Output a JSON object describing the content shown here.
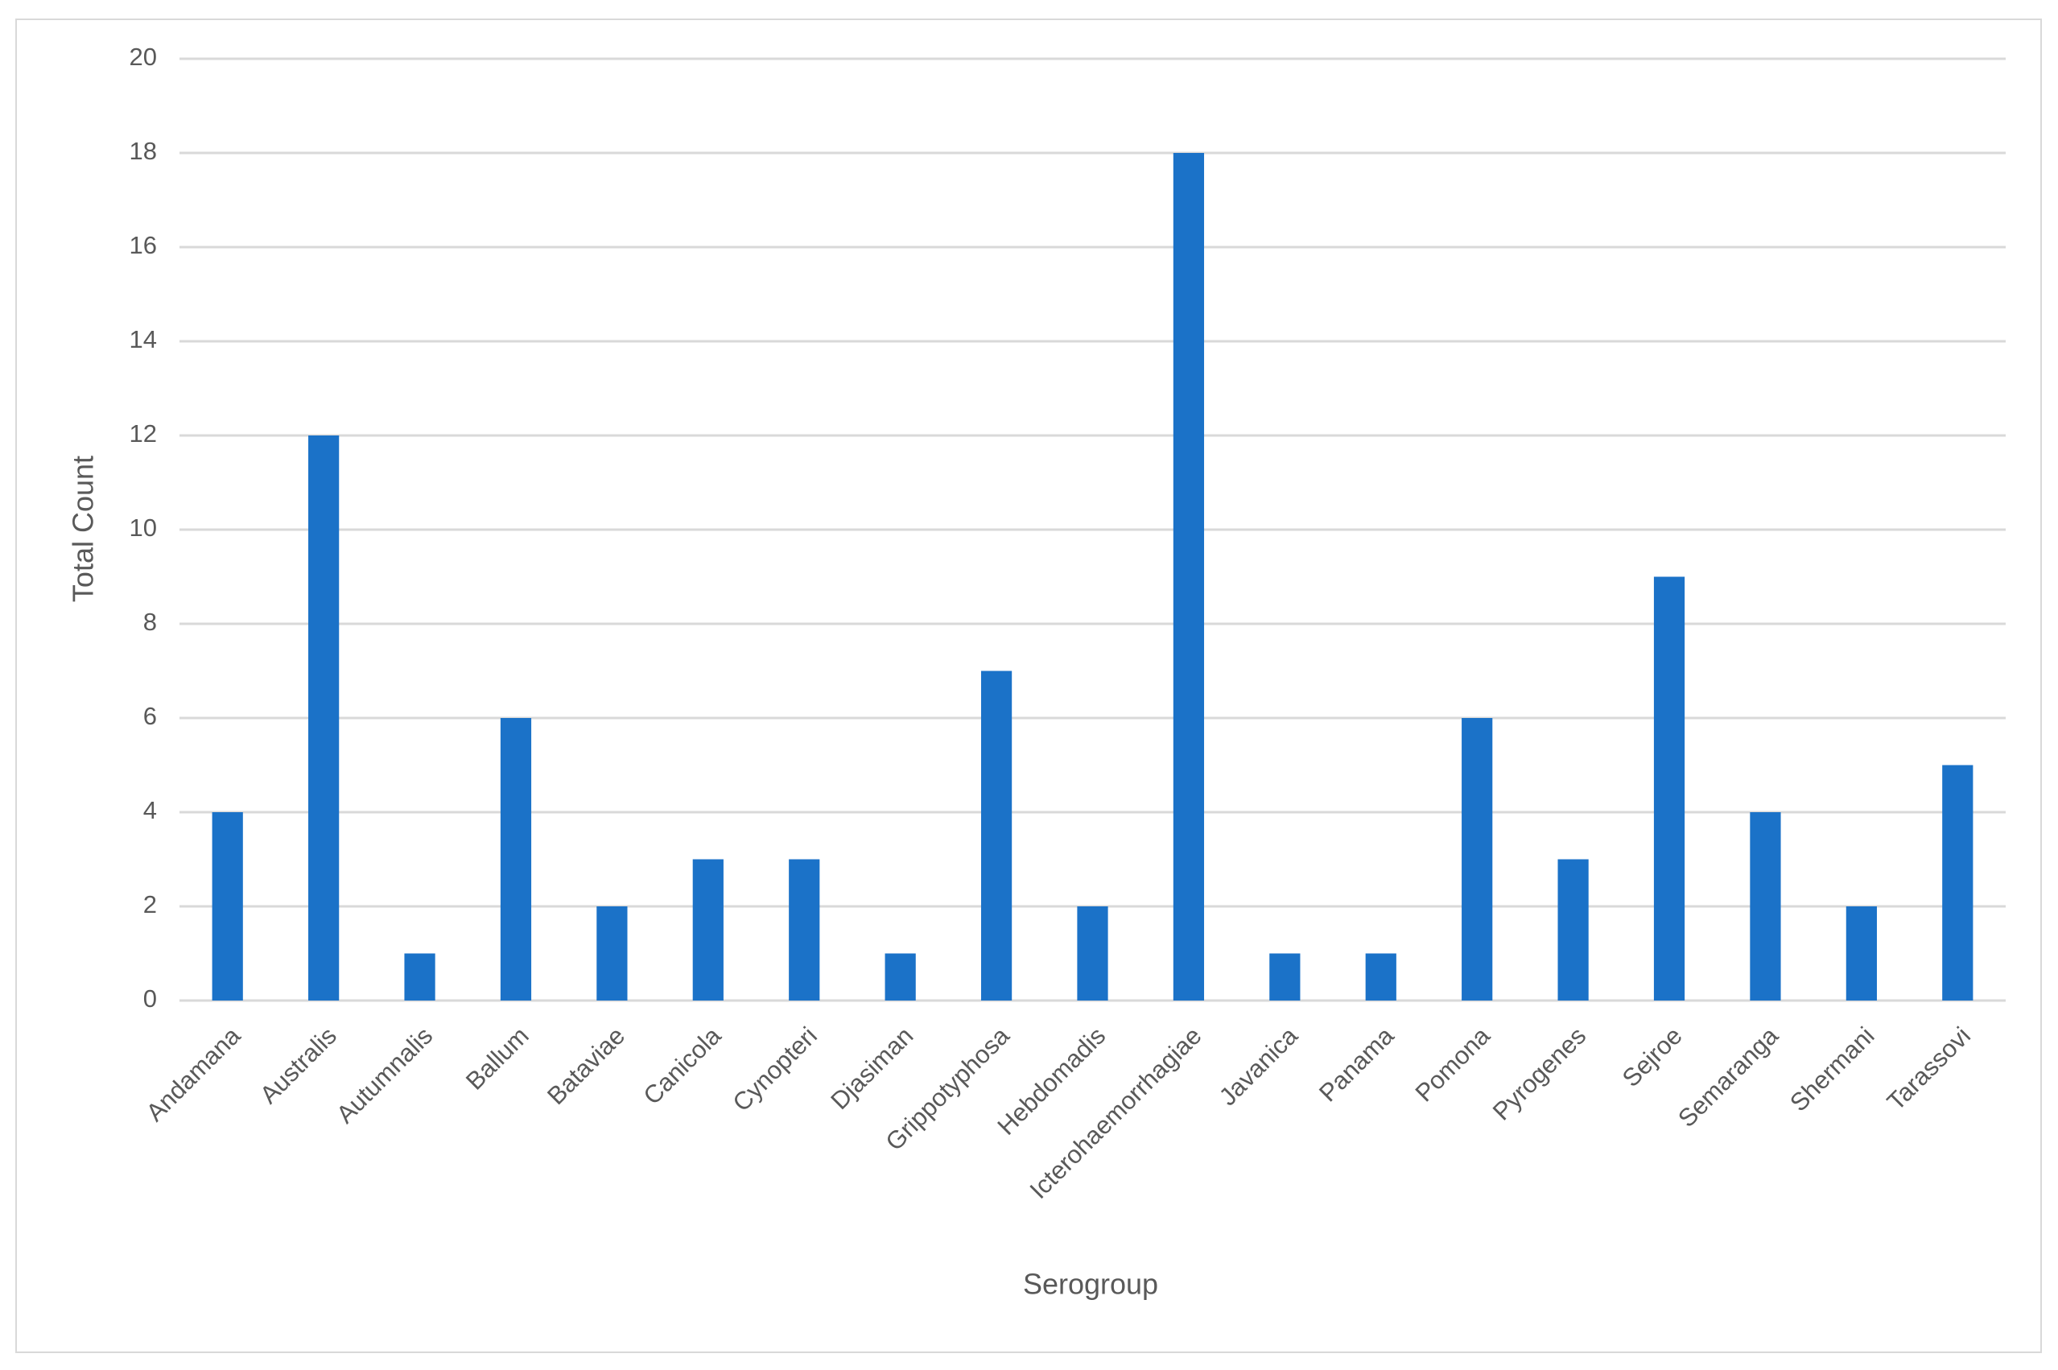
{
  "chart_data": {
    "type": "bar",
    "x_label": "Serogroup",
    "y_label": "Total Count",
    "categories": [
      "Andamana",
      "Australis",
      "Autumnalis",
      "Ballum",
      "Bataviae",
      "Canicola",
      "Cynopteri",
      "Djasiman",
      "Grippotyphosa",
      "Hebdomadis",
      "Icterohaemorrhagiae",
      "Javanica",
      "Panama",
      "Pomona",
      "Pyrogenes",
      "Sejroe",
      "Semaranga",
      "Shermani",
      "Tarassovi"
    ],
    "values": [
      4,
      12,
      1,
      6,
      2,
      3,
      3,
      1,
      7,
      2,
      18,
      1,
      1,
      6,
      3,
      9,
      4,
      2,
      5
    ],
    "color": "#1b72c8",
    "ylim": [
      0,
      20
    ],
    "yticks": [
      0,
      2,
      4,
      6,
      8,
      10,
      12,
      14,
      16,
      18,
      20
    ],
    "grid": true
  }
}
